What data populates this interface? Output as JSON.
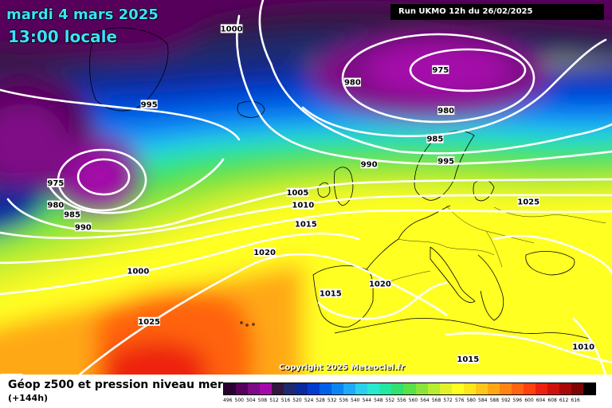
{
  "header": {
    "date": "mardi 4 mars 2025",
    "time": "13:00 locale",
    "run": "Run UKMO 12h du 26/02/2025"
  },
  "footer": {
    "product": "Géop z500 et pression niveau mer",
    "lead": "(+144h)",
    "copyright": "Copyright 2025 Meteociel.fr"
  },
  "legend": {
    "ticks": [
      "496",
      "500",
      "504",
      "508",
      "512",
      "516",
      "520",
      "524",
      "528",
      "532",
      "536",
      "540",
      "544",
      "548",
      "552",
      "556",
      "560",
      "564",
      "568",
      "572",
      "576",
      "580",
      "584",
      "588",
      "592",
      "596",
      "600",
      "604",
      "608",
      "612",
      "616"
    ],
    "colors": [
      "#2a0030",
      "#56005c",
      "#7e0a86",
      "#a40aaa",
      "#32163e",
      "#1e2a6e",
      "#0a2a9c",
      "#003cd0",
      "#0060e8",
      "#0a86f2",
      "#1eaaf8",
      "#2ad0ea",
      "#28ead0",
      "#22e8a2",
      "#30e070",
      "#5ae048",
      "#8ce43a",
      "#b8ee30",
      "#e2f22a",
      "#ffff20",
      "#ffe61c",
      "#ffc818",
      "#ffa814",
      "#ff8412",
      "#ff6410",
      "#ff4010",
      "#ee2010",
      "#d0100c",
      "#a80808",
      "#7c0404",
      "#000000"
    ]
  },
  "isobars": [
    {
      "value": "1000",
      "lon": -26.0,
      "lat": 72.5
    },
    {
      "value": "995",
      "lon": -41.0,
      "lat": 60.5
    },
    {
      "value": "980",
      "lon": -4.0,
      "lat": 64.0
    },
    {
      "value": "975",
      "lon": 12.0,
      "lat": 66.0
    },
    {
      "value": "980",
      "lon": 13.0,
      "lat": 59.5
    },
    {
      "value": "985",
      "lon": 11.0,
      "lat": 55.0
    },
    {
      "value": "990",
      "lon": -1.0,
      "lat": 51.0
    },
    {
      "value": "995",
      "lon": 13.0,
      "lat": 51.5
    },
    {
      "value": "995",
      "lon": 55.0,
      "lat": 73.0
    },
    {
      "value": "975",
      "lon": -58.0,
      "lat": 48.0
    },
    {
      "value": "980",
      "lon": -58.0,
      "lat": 44.5
    },
    {
      "value": "985",
      "lon": -55.0,
      "lat": 43.0
    },
    {
      "value": "990",
      "lon": -53.0,
      "lat": 41.0
    },
    {
      "value": "010",
      "lon": -78.0,
      "lat": 35.0
    },
    {
      "value": "1015",
      "lon": -75.0,
      "lat": 31.0
    },
    {
      "value": "1005",
      "lon": -14.0,
      "lat": 46.5
    },
    {
      "value": "1010",
      "lon": -13.0,
      "lat": 44.5
    },
    {
      "value": "1015",
      "lon": -12.5,
      "lat": 41.5
    },
    {
      "value": "1020",
      "lon": -20.0,
      "lat": 37.0
    },
    {
      "value": "1000",
      "lon": -43.0,
      "lat": 34.0
    },
    {
      "value": "1025",
      "lon": 28.0,
      "lat": 45.0
    },
    {
      "value": "1015",
      "lon": -8.0,
      "lat": 30.5
    },
    {
      "value": "1020",
      "lon": 1.0,
      "lat": 32.0
    },
    {
      "value": "1025",
      "lon": -41.0,
      "lat": 26.0
    },
    {
      "value": "1025",
      "lon": -66.0,
      "lat": 17.0
    },
    {
      "value": "1015",
      "lon": 17.0,
      "lat": 20.0
    },
    {
      "value": "1010",
      "lon": 38.0,
      "lat": 22.0
    }
  ]
}
